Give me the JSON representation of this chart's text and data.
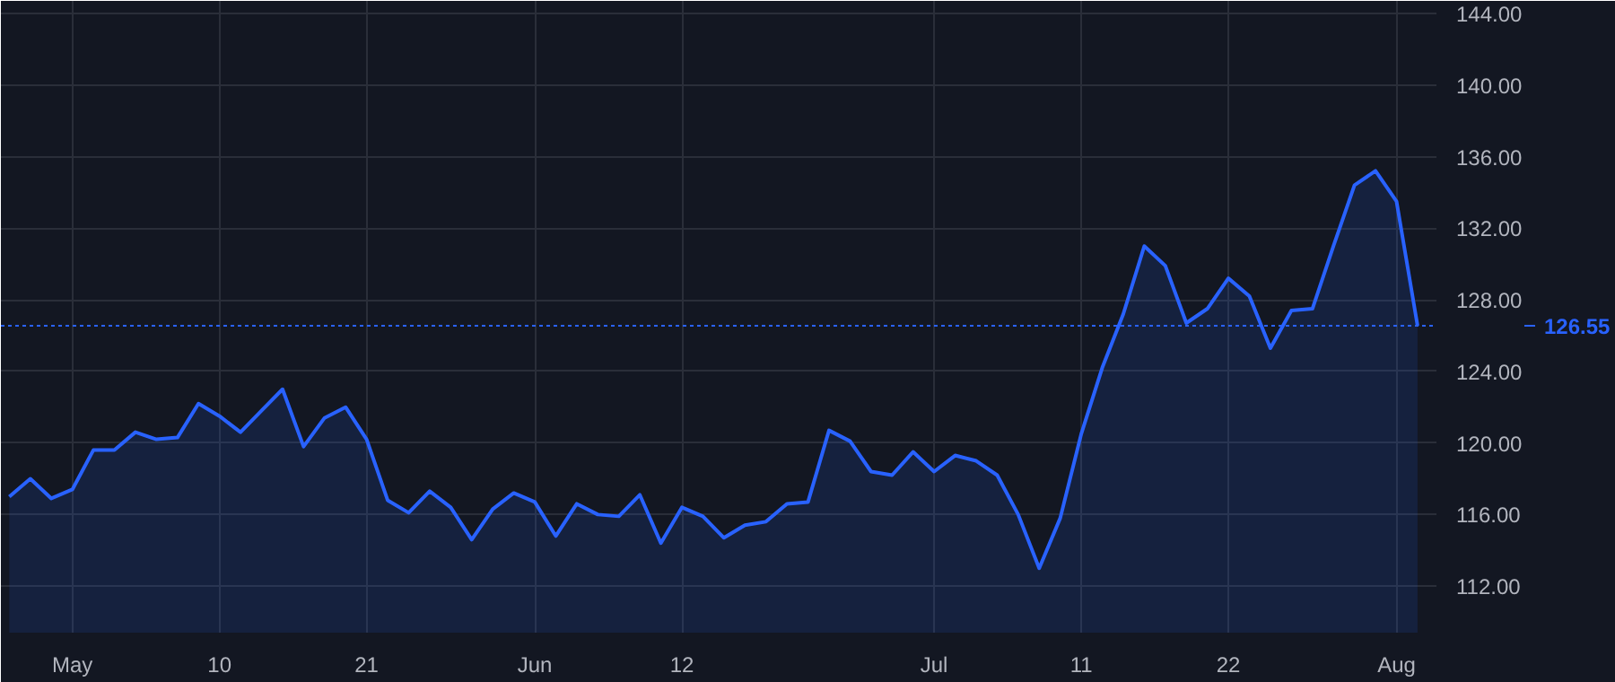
{
  "chart_data": {
    "type": "area",
    "categories": [
      null,
      null,
      null,
      "May",
      null,
      null,
      null,
      null,
      null,
      null,
      "10",
      null,
      null,
      null,
      null,
      null,
      null,
      "21",
      null,
      null,
      null,
      null,
      null,
      null,
      null,
      "Jun",
      null,
      null,
      null,
      null,
      null,
      null,
      "12",
      null,
      null,
      null,
      null,
      null,
      null,
      null,
      null,
      null,
      null,
      null,
      "Jul",
      null,
      null,
      null,
      null,
      null,
      null,
      "11",
      null,
      null,
      null,
      null,
      null,
      null,
      "22",
      null,
      null,
      null,
      null,
      null,
      null,
      null,
      "Aug",
      null
    ],
    "series": [
      {
        "color": "#2962ff",
        "values": [
          117.0,
          118.0,
          116.9,
          117.4,
          119.6,
          119.6,
          120.6,
          120.2,
          120.3,
          122.2,
          121.5,
          120.6,
          121.8,
          123.0,
          119.8,
          121.4,
          122.0,
          120.2,
          116.8,
          116.1,
          117.3,
          116.4,
          114.6,
          116.3,
          117.2,
          116.7,
          114.8,
          116.6,
          116.0,
          115.9,
          117.1,
          114.4,
          116.4,
          115.9,
          114.7,
          115.4,
          115.6,
          116.6,
          116.7,
          120.7,
          120.1,
          118.4,
          118.2,
          119.5,
          118.4,
          119.3,
          119.0,
          118.2,
          116.0,
          113.0,
          115.8,
          120.5,
          124.2,
          127.2,
          131.0,
          129.9,
          126.7,
          127.5,
          129.2,
          128.2,
          125.3,
          127.4,
          127.5,
          131.0,
          134.4,
          135.2,
          133.5,
          126.55
        ]
      }
    ],
    "ylim": [
      109.4,
      144.7
    ],
    "yticks": [
      {
        "value": 112,
        "label": "112.00"
      },
      {
        "value": 116,
        "label": "116.00"
      },
      {
        "value": 120,
        "label": "120.00"
      },
      {
        "value": 124,
        "label": "124.00"
      },
      {
        "value": 128,
        "label": "128.00"
      },
      {
        "value": 132,
        "label": "132.00"
      },
      {
        "value": 136,
        "label": "136.00"
      },
      {
        "value": 140,
        "label": "140.00"
      },
      {
        "value": 144,
        "label": "144.00"
      }
    ],
    "ref_lines": [
      {
        "axis": "y",
        "value": 126.55,
        "label": "126.55",
        "color": "#2962ff",
        "line_style": "dotted"
      }
    ],
    "grid": true
  }
}
